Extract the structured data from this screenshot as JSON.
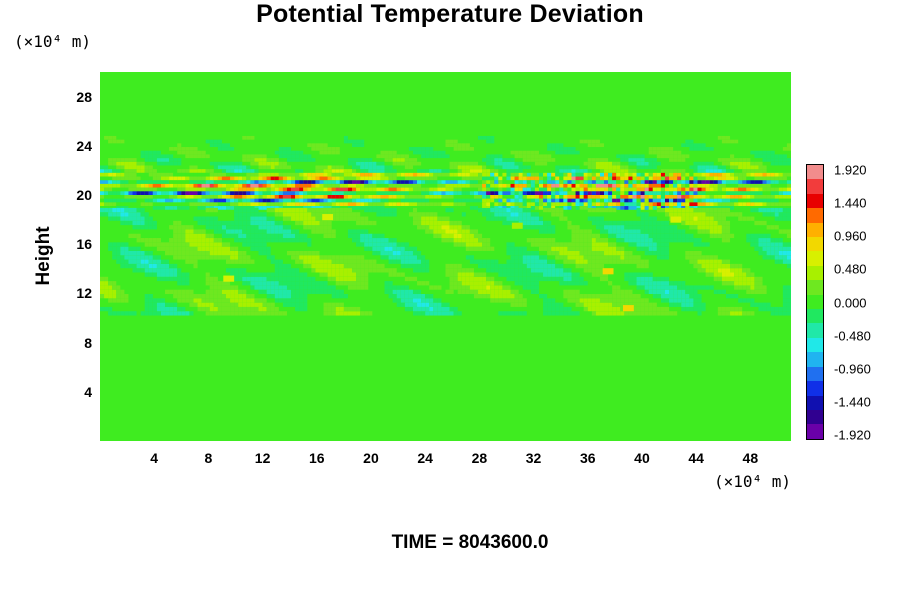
{
  "chart_data": {
    "type": "heatmap",
    "title": "Potential Temperature Deviation",
    "ylabel": "Height",
    "xlabel": "",
    "x_unit": "(×10⁴ m)",
    "y_unit": "(×10⁴ m)",
    "x_ticks": [
      "4",
      "8",
      "12",
      "16",
      "20",
      "24",
      "28",
      "32",
      "36",
      "40",
      "44",
      "48"
    ],
    "x_tick_values": [
      4,
      8,
      12,
      16,
      20,
      24,
      28,
      32,
      36,
      40,
      44,
      48
    ],
    "y_ticks": [
      "4",
      "8",
      "12",
      "16",
      "20",
      "24",
      "28"
    ],
    "y_tick_values": [
      4,
      8,
      12,
      16,
      20,
      24,
      28
    ],
    "xlim": [
      0,
      51
    ],
    "ylim": [
      0,
      30
    ],
    "colorbar": {
      "labels": [
        "1.920",
        "1.440",
        "0.960",
        "0.480",
        "0.000",
        "-0.480",
        "-0.960",
        "-1.440",
        "-1.920"
      ],
      "values": [
        1.92,
        1.44,
        0.96,
        0.48,
        0.0,
        -0.48,
        -0.96,
        -1.44,
        -1.92
      ],
      "range": [
        -2.0,
        2.0
      ],
      "colors_top_to_bottom": [
        "#f28c8c",
        "#f23c3c",
        "#e80000",
        "#ff6a00",
        "#ffb000",
        "#f2d800",
        "#d8f000",
        "#a8f000",
        "#6ee820",
        "#3fec20",
        "#20e860",
        "#20e8a8",
        "#20e8e8",
        "#20b4f0",
        "#2070f0",
        "#1030e8",
        "#1010b0",
        "#300090",
        "#6a00a8"
      ]
    },
    "features": [
      {
        "name": "strong oscillating band",
        "y_center": 20.3,
        "y_half_width": 1.2,
        "value_range": [
          -1.92,
          1.92
        ]
      },
      {
        "name": "weak perturbations",
        "y_range": [
          10,
          24
        ],
        "value_range": [
          -0.5,
          0.7
        ]
      },
      {
        "name": "background",
        "y_range": [
          0,
          10
        ],
        "value": 0.0
      }
    ],
    "grid": false
  },
  "footer": {
    "time_label": "TIME = 8043600.0"
  },
  "colors": {
    "background_green": "#3fec20",
    "positive_max": "#f28c8c",
    "negative_min": "#6a00a8"
  }
}
